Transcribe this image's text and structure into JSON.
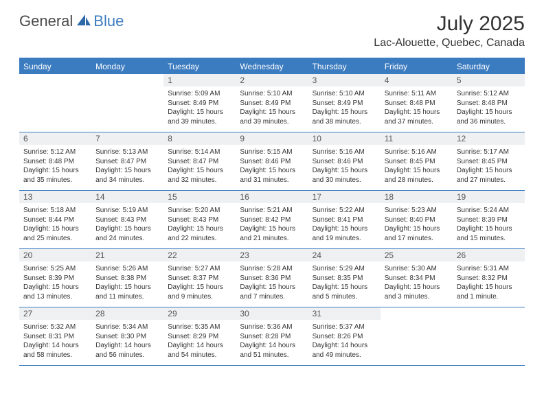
{
  "brand": {
    "part1": "General",
    "part2": "Blue"
  },
  "title": "July 2025",
  "location": "Lac-Alouette, Quebec, Canada",
  "colors": {
    "accent": "#3b7bbf",
    "daynum_bg": "#eef0f2",
    "text": "#333333",
    "bg": "#ffffff"
  },
  "day_headers": [
    "Sunday",
    "Monday",
    "Tuesday",
    "Wednesday",
    "Thursday",
    "Friday",
    "Saturday"
  ],
  "weeks": [
    [
      {
        "day": "",
        "sunrise": "",
        "sunset": "",
        "daylight": ""
      },
      {
        "day": "",
        "sunrise": "",
        "sunset": "",
        "daylight": ""
      },
      {
        "day": "1",
        "sunrise": "Sunrise: 5:09 AM",
        "sunset": "Sunset: 8:49 PM",
        "daylight": "Daylight: 15 hours and 39 minutes."
      },
      {
        "day": "2",
        "sunrise": "Sunrise: 5:10 AM",
        "sunset": "Sunset: 8:49 PM",
        "daylight": "Daylight: 15 hours and 39 minutes."
      },
      {
        "day": "3",
        "sunrise": "Sunrise: 5:10 AM",
        "sunset": "Sunset: 8:49 PM",
        "daylight": "Daylight: 15 hours and 38 minutes."
      },
      {
        "day": "4",
        "sunrise": "Sunrise: 5:11 AM",
        "sunset": "Sunset: 8:48 PM",
        "daylight": "Daylight: 15 hours and 37 minutes."
      },
      {
        "day": "5",
        "sunrise": "Sunrise: 5:12 AM",
        "sunset": "Sunset: 8:48 PM",
        "daylight": "Daylight: 15 hours and 36 minutes."
      }
    ],
    [
      {
        "day": "6",
        "sunrise": "Sunrise: 5:12 AM",
        "sunset": "Sunset: 8:48 PM",
        "daylight": "Daylight: 15 hours and 35 minutes."
      },
      {
        "day": "7",
        "sunrise": "Sunrise: 5:13 AM",
        "sunset": "Sunset: 8:47 PM",
        "daylight": "Daylight: 15 hours and 34 minutes."
      },
      {
        "day": "8",
        "sunrise": "Sunrise: 5:14 AM",
        "sunset": "Sunset: 8:47 PM",
        "daylight": "Daylight: 15 hours and 32 minutes."
      },
      {
        "day": "9",
        "sunrise": "Sunrise: 5:15 AM",
        "sunset": "Sunset: 8:46 PM",
        "daylight": "Daylight: 15 hours and 31 minutes."
      },
      {
        "day": "10",
        "sunrise": "Sunrise: 5:16 AM",
        "sunset": "Sunset: 8:46 PM",
        "daylight": "Daylight: 15 hours and 30 minutes."
      },
      {
        "day": "11",
        "sunrise": "Sunrise: 5:16 AM",
        "sunset": "Sunset: 8:45 PM",
        "daylight": "Daylight: 15 hours and 28 minutes."
      },
      {
        "day": "12",
        "sunrise": "Sunrise: 5:17 AM",
        "sunset": "Sunset: 8:45 PM",
        "daylight": "Daylight: 15 hours and 27 minutes."
      }
    ],
    [
      {
        "day": "13",
        "sunrise": "Sunrise: 5:18 AM",
        "sunset": "Sunset: 8:44 PM",
        "daylight": "Daylight: 15 hours and 25 minutes."
      },
      {
        "day": "14",
        "sunrise": "Sunrise: 5:19 AM",
        "sunset": "Sunset: 8:43 PM",
        "daylight": "Daylight: 15 hours and 24 minutes."
      },
      {
        "day": "15",
        "sunrise": "Sunrise: 5:20 AM",
        "sunset": "Sunset: 8:43 PM",
        "daylight": "Daylight: 15 hours and 22 minutes."
      },
      {
        "day": "16",
        "sunrise": "Sunrise: 5:21 AM",
        "sunset": "Sunset: 8:42 PM",
        "daylight": "Daylight: 15 hours and 21 minutes."
      },
      {
        "day": "17",
        "sunrise": "Sunrise: 5:22 AM",
        "sunset": "Sunset: 8:41 PM",
        "daylight": "Daylight: 15 hours and 19 minutes."
      },
      {
        "day": "18",
        "sunrise": "Sunrise: 5:23 AM",
        "sunset": "Sunset: 8:40 PM",
        "daylight": "Daylight: 15 hours and 17 minutes."
      },
      {
        "day": "19",
        "sunrise": "Sunrise: 5:24 AM",
        "sunset": "Sunset: 8:39 PM",
        "daylight": "Daylight: 15 hours and 15 minutes."
      }
    ],
    [
      {
        "day": "20",
        "sunrise": "Sunrise: 5:25 AM",
        "sunset": "Sunset: 8:39 PM",
        "daylight": "Daylight: 15 hours and 13 minutes."
      },
      {
        "day": "21",
        "sunrise": "Sunrise: 5:26 AM",
        "sunset": "Sunset: 8:38 PM",
        "daylight": "Daylight: 15 hours and 11 minutes."
      },
      {
        "day": "22",
        "sunrise": "Sunrise: 5:27 AM",
        "sunset": "Sunset: 8:37 PM",
        "daylight": "Daylight: 15 hours and 9 minutes."
      },
      {
        "day": "23",
        "sunrise": "Sunrise: 5:28 AM",
        "sunset": "Sunset: 8:36 PM",
        "daylight": "Daylight: 15 hours and 7 minutes."
      },
      {
        "day": "24",
        "sunrise": "Sunrise: 5:29 AM",
        "sunset": "Sunset: 8:35 PM",
        "daylight": "Daylight: 15 hours and 5 minutes."
      },
      {
        "day": "25",
        "sunrise": "Sunrise: 5:30 AM",
        "sunset": "Sunset: 8:34 PM",
        "daylight": "Daylight: 15 hours and 3 minutes."
      },
      {
        "day": "26",
        "sunrise": "Sunrise: 5:31 AM",
        "sunset": "Sunset: 8:32 PM",
        "daylight": "Daylight: 15 hours and 1 minute."
      }
    ],
    [
      {
        "day": "27",
        "sunrise": "Sunrise: 5:32 AM",
        "sunset": "Sunset: 8:31 PM",
        "daylight": "Daylight: 14 hours and 58 minutes."
      },
      {
        "day": "28",
        "sunrise": "Sunrise: 5:34 AM",
        "sunset": "Sunset: 8:30 PM",
        "daylight": "Daylight: 14 hours and 56 minutes."
      },
      {
        "day": "29",
        "sunrise": "Sunrise: 5:35 AM",
        "sunset": "Sunset: 8:29 PM",
        "daylight": "Daylight: 14 hours and 54 minutes."
      },
      {
        "day": "30",
        "sunrise": "Sunrise: 5:36 AM",
        "sunset": "Sunset: 8:28 PM",
        "daylight": "Daylight: 14 hours and 51 minutes."
      },
      {
        "day": "31",
        "sunrise": "Sunrise: 5:37 AM",
        "sunset": "Sunset: 8:26 PM",
        "daylight": "Daylight: 14 hours and 49 minutes."
      },
      {
        "day": "",
        "sunrise": "",
        "sunset": "",
        "daylight": ""
      },
      {
        "day": "",
        "sunrise": "",
        "sunset": "",
        "daylight": ""
      }
    ]
  ]
}
